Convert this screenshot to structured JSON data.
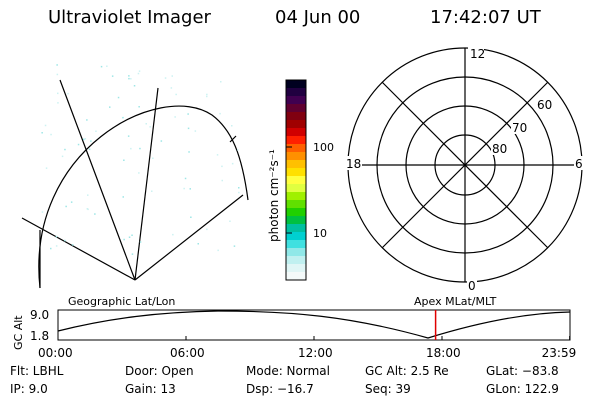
{
  "header": {
    "instrument": "Ultraviolet Imager",
    "date": "04 Jun 00",
    "time": "17:42:07 UT"
  },
  "colorbar": {
    "unit_label": "photon cm⁻²s⁻¹",
    "ticks": [
      "100",
      "10"
    ],
    "colors": [
      "#000020",
      "#200040",
      "#400050",
      "#600030",
      "#800010",
      "#a00000",
      "#d00000",
      "#ff2000",
      "#ff6000",
      "#ff9000",
      "#ffc000",
      "#ffe000",
      "#ffff40",
      "#e0ff40",
      "#a0f000",
      "#60e000",
      "#20d000",
      "#00c040",
      "#00c0a0",
      "#00d0d0",
      "#40e0e0",
      "#90e8e8",
      "#c0f0f0",
      "#e0f6f6",
      "#f4fafa"
    ]
  },
  "polar_plot": {
    "hour_labels": {
      "top": "12",
      "left": "18",
      "right": "6",
      "bottom": "0"
    },
    "lat_labels": [
      "60",
      "70",
      "80"
    ]
  },
  "orbit_plot": {
    "ylabel": "GC Alt",
    "yticks": [
      "9.0",
      "1.8"
    ],
    "left_title": "Geographic Lat/Lon",
    "right_title": "Apex MLat/MLT",
    "xticks": [
      "00:00",
      "06:00",
      "12:00",
      "18:00",
      "23:59"
    ],
    "marker_hour": 17.7,
    "marker_color": "#e00000"
  },
  "info": {
    "flt": "Flt:  LBHL",
    "ip": "IP:  9.0",
    "door": "Door:  Open",
    "gain": "Gain:  13",
    "mode": "Mode:  Normal",
    "dsp": "Dsp:   −16.7",
    "gcalt": "GC Alt:  2.5 Re",
    "seq": "Seq:  39",
    "glat": "GLat:  −83.8",
    "glon": "GLon:  122.9"
  }
}
